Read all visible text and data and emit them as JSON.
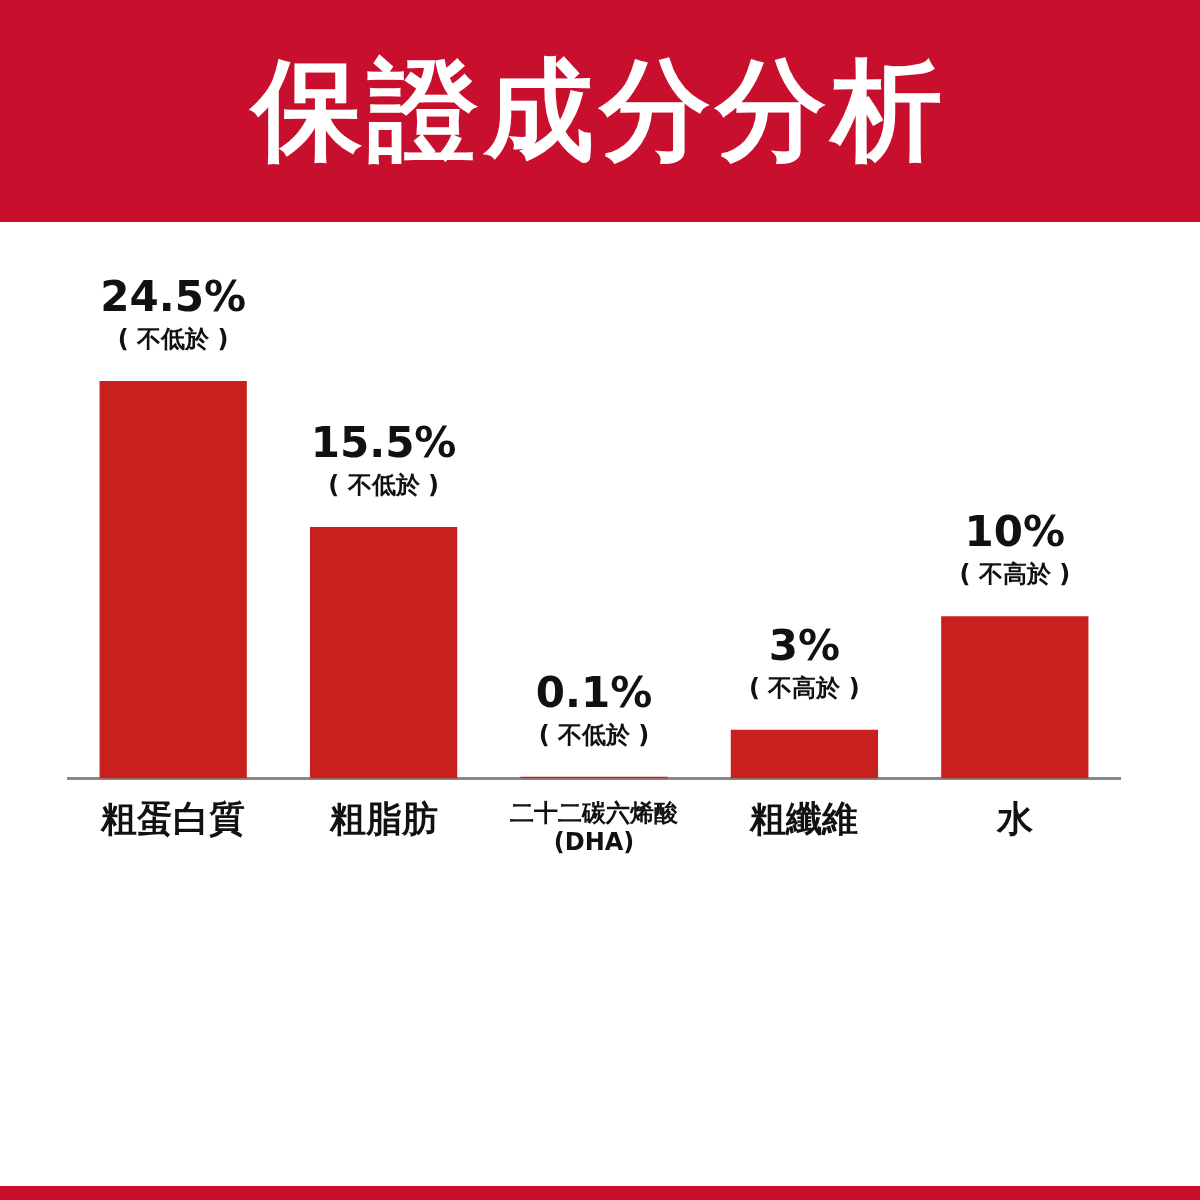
{
  "chart_data": {
    "type": "bar",
    "title": "保證成分分析",
    "categories": [
      "粗蛋白質",
      "粗脂肪",
      "二十二碳六烯酸 (DHA)",
      "粗纖維",
      "水"
    ],
    "values": [
      24.5,
      15.5,
      0.1,
      3,
      10
    ],
    "value_labels": [
      "24.5%\n( 不低於 )",
      "15.5%\n( 不低於 )",
      "0.1%\n( 不低於 )",
      "3%\n( 不高於 )",
      "10%\n( 不高於 )"
    ],
    "color": "#c8201f"
  }
}
